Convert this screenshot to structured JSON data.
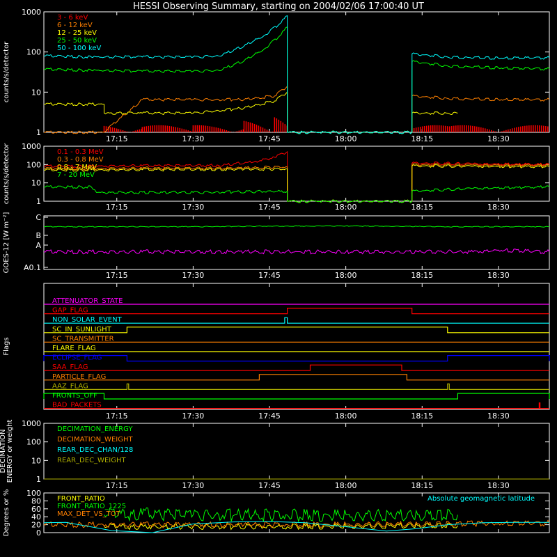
{
  "title": "HESSI Observing Summary, starting on 2004/02/06 17:00:40 UT",
  "time_ticks": [
    "17:15",
    "17:30",
    "17:45",
    "18:00",
    "18:15",
    "18:30"
  ],
  "colors": {
    "red": "#ff0000",
    "orange": "#ff8000",
    "yellow": "#ffff00",
    "green": "#00ff00",
    "cyan": "#00ffff",
    "magenta": "#ff00ff",
    "blue": "#0000ff",
    "olive": "#b0b000",
    "white": "#ffffff"
  },
  "chart_data": [
    {
      "type": "line",
      "title": "HESSI Observing Summary, starting on 2004/02/06 17:00:40 UT",
      "ylabel": "counts/s/detector",
      "yscale": "log",
      "ylim": [
        1,
        1000
      ],
      "yticks": [
        "1",
        "10",
        "100",
        "1000"
      ],
      "xlim": [
        "17:00:40",
        "18:40"
      ],
      "legend_position": "top-left",
      "series": [
        {
          "name": "3 - 6 keV",
          "color": "red",
          "style": "bars",
          "x": [
            "17:12:30",
            "17:20",
            "17:30",
            "17:40",
            "17:46",
            "17:48:30",
            "17:48:31",
            "18:13",
            "18:20",
            "18:40"
          ],
          "values": [
            1.5,
            1.5,
            1.5,
            2,
            3,
            3.5,
            1,
            1.5,
            1.5,
            1.5
          ]
        },
        {
          "name": "6 - 12 keV",
          "color": "orange",
          "x": [
            "17:00:40",
            "17:12:30",
            "17:20",
            "17:30",
            "17:40",
            "17:46",
            "17:48:30",
            "17:48:31",
            "18:13",
            "18:13:01",
            "18:20",
            "18:30",
            "18:40"
          ],
          "values": [
            1,
            1,
            6.5,
            6.5,
            6.5,
            8,
            14,
            1,
            1,
            8,
            7,
            6.5,
            6.5
          ]
        },
        {
          "name": "12 - 25 keV",
          "color": "yellow",
          "x": [
            "17:00:40",
            "17:12:30",
            "17:12:31",
            "17:20",
            "17:30",
            "17:40",
            "17:46",
            "17:48:30",
            "17:48:31",
            "18:13",
            "18:13:01",
            "18:20",
            "18:22"
          ],
          "values": [
            5,
            5,
            3,
            3,
            3,
            4,
            6,
            10,
            1,
            1,
            3,
            3,
            3
          ]
        },
        {
          "name": "25 - 50 keV",
          "color": "green",
          "x": [
            "17:00:40",
            "17:10",
            "17:20",
            "17:30",
            "17:35",
            "17:40",
            "17:44",
            "17:47",
            "17:48:30",
            "17:48:31",
            "18:13",
            "18:13:01",
            "18:20",
            "18:30",
            "18:40"
          ],
          "values": [
            37,
            35,
            33,
            33,
            35,
            60,
            120,
            250,
            420,
            1,
            1,
            58,
            45,
            40,
            38
          ]
        },
        {
          "name": "50 - 100 keV",
          "color": "cyan",
          "x": [
            "17:00:40",
            "17:10",
            "17:20",
            "17:30",
            "17:35",
            "17:40",
            "17:44",
            "17:47",
            "17:48:30",
            "17:48:31",
            "18:13",
            "18:13:01",
            "18:20",
            "18:30",
            "18:40"
          ],
          "values": [
            80,
            75,
            75,
            75,
            80,
            140,
            260,
            500,
            800,
            1,
            1,
            90,
            75,
            70,
            72
          ]
        }
      ]
    },
    {
      "type": "line",
      "ylabel": "counts/s/detector",
      "yscale": "log",
      "ylim": [
        1,
        1000
      ],
      "yticks": [
        "1",
        "10",
        "100",
        "1000"
      ],
      "legend_position": "top-left",
      "series": [
        {
          "name": "0.1 - 0.3 MeV",
          "color": "red",
          "x": [
            "17:00:40",
            "17:20",
            "17:35",
            "17:42",
            "17:46",
            "17:48:30",
            "17:48:31",
            "18:13",
            "18:13:01",
            "18:25",
            "18:40"
          ],
          "values": [
            80,
            85,
            90,
            140,
            250,
            500,
            1,
            1,
            120,
            110,
            100
          ]
        },
        {
          "name": "0.3 - 0.8 MeV",
          "color": "orange",
          "x": [
            "17:00:40",
            "17:20",
            "17:40",
            "17:48:30",
            "17:48:31",
            "18:13",
            "18:13:01",
            "18:25",
            "18:40"
          ],
          "values": [
            60,
            62,
            65,
            75,
            1,
            1,
            100,
            95,
            90
          ]
        },
        {
          "name": "0.8 - 7 MeV",
          "color": "yellow",
          "x": [
            "17:00:40",
            "17:20",
            "17:40",
            "17:48:30",
            "17:48:31",
            "18:13",
            "18:13:01",
            "18:25",
            "18:40"
          ],
          "values": [
            50,
            52,
            55,
            58,
            1,
            1,
            85,
            80,
            75
          ]
        },
        {
          "name": "7 - 20 MeV",
          "color": "green",
          "x": [
            "17:00:40",
            "17:10",
            "17:11",
            "17:30",
            "17:48:30",
            "17:48:31",
            "18:13",
            "18:13:01",
            "18:25",
            "18:40"
          ],
          "values": [
            6,
            6,
            3,
            3,
            3.5,
            1,
            1,
            3.5,
            5,
            6
          ]
        }
      ]
    },
    {
      "type": "line",
      "ylabel": "GOES-12 [W m⁻²]",
      "yscale": "log",
      "yticks": [
        "A0.1",
        "A",
        "B",
        "C"
      ],
      "series": [
        {
          "color": "green",
          "x": [
            "17:00:40",
            "17:30",
            "17:45",
            "18:00",
            "18:20",
            "18:40"
          ],
          "values": [
            "B3",
            "B3",
            "B3.2",
            "B3.3",
            "B3",
            "B3"
          ]
        },
        {
          "color": "magenta",
          "x": [
            "17:00:40",
            "17:20",
            "17:40",
            "18:00",
            "18:25",
            "18:30",
            "18:40"
          ],
          "values": [
            "A0.2",
            "A0.2",
            "A0.2",
            "A0.2",
            "A0.2",
            "A0.3",
            "A0.2"
          ]
        }
      ]
    },
    {
      "type": "line",
      "ylabel": "Flags",
      "series": [
        {
          "name": "ATTENUATOR_STATE",
          "color": "magenta",
          "high": []
        },
        {
          "name": "GAP_FLAG",
          "color": "red",
          "high": [
            [
              "17:48:30",
              "18:13"
            ]
          ]
        },
        {
          "name": "NON_SOLAR_EVENT",
          "color": "cyan",
          "high": [
            [
              "17:48",
              "17:48:30"
            ]
          ]
        },
        {
          "name": "SC_IN_SUNLIGHT",
          "color": "yellow",
          "high": [
            [
              "17:17",
              "18:20"
            ]
          ]
        },
        {
          "name": "SC_TRANSMITTER",
          "color": "orange",
          "high": []
        },
        {
          "name": "FLARE_FLAG",
          "color": "yellow",
          "high": []
        },
        {
          "name": "ECLIPSE_FLAG",
          "color": "blue",
          "high": [
            [
              "17:00:40",
              "17:17"
            ],
            [
              "18:20",
              "18:40"
            ]
          ]
        },
        {
          "name": "SAA_FLAG",
          "color": "red",
          "high": [
            [
              "17:53",
              "18:11"
            ]
          ]
        },
        {
          "name": "PARTICLE_FLAG",
          "color": "orange",
          "high": [
            [
              "17:43",
              "18:12"
            ]
          ]
        },
        {
          "name": "AAZ_FLAG",
          "color": "olive",
          "high": [
            [
              "17:17",
              "17:17:20"
            ],
            [
              "18:20",
              "18:20:20"
            ]
          ]
        },
        {
          "name": "FRONTS_OFF",
          "color": "green",
          "high": [
            [
              "17:00:40",
              "17:12:30"
            ],
            [
              "18:22",
              "18:40"
            ]
          ]
        },
        {
          "name": "BAD_PACKETS",
          "color": "red",
          "high": [
            [
              "18:38",
              "18:38:10"
            ]
          ]
        }
      ]
    },
    {
      "type": "line",
      "ylabel": "DECIMATION ENERGY or weight",
      "yscale": "log",
      "ylim": [
        1,
        1000
      ],
      "yticks": [
        "1",
        "10",
        "100",
        "1000"
      ],
      "legend_position": "top-left",
      "series": [
        {
          "name": "DECIMATION_ENERGY",
          "color": "green"
        },
        {
          "name": "DECIMATION_WEIGHT",
          "color": "orange"
        },
        {
          "name": "REAR_DEC_CHAN/128",
          "color": "cyan"
        },
        {
          "name": "REAR_DEC_WEIGHT",
          "color": "olive",
          "x": [
            "17:00:40",
            "18:40"
          ],
          "values": [
            1,
            1
          ]
        }
      ]
    },
    {
      "type": "line",
      "ylabel": "Degrees or %",
      "ylim": [
        0,
        100
      ],
      "yticks": [
        "0",
        "20",
        "40",
        "60",
        "80",
        "100"
      ],
      "legend_position": "top-left",
      "annotations": [
        "Absolute geomagnetic latitude"
      ],
      "series": [
        {
          "name": "FRONT_RATIO",
          "color": "yellow",
          "x": [
            "17:12:30",
            "17:30",
            "17:48:30",
            "18:13",
            "18:22"
          ],
          "values": [
            15,
            15,
            15,
            18,
            18
          ]
        },
        {
          "name": "FRONT_RATIO_1225",
          "color": "green",
          "x": [
            "17:12:30",
            "17:20",
            "17:30",
            "17:40",
            "17:48:30",
            "18:13",
            "18:22"
          ],
          "values": [
            45,
            47,
            45,
            44,
            44,
            45,
            45
          ]
        },
        {
          "name": "MAX_DET_VS_TOT",
          "color": "orange",
          "x": [
            "17:00:40",
            "17:20",
            "17:40",
            "17:48:30",
            "18:13",
            "18:30",
            "18:40"
          ],
          "values": [
            20,
            20,
            20,
            20,
            22,
            23,
            24
          ]
        },
        {
          "name": "Absolute geomagnetic latitude",
          "color": "cyan",
          "x": [
            "17:00:40",
            "17:05",
            "17:14",
            "17:22",
            "17:30",
            "17:38",
            "17:45",
            "17:52",
            "18:00",
            "18:08",
            "18:14",
            "18:20",
            "18:27",
            "18:33",
            "18:40"
          ],
          "values": [
            25,
            26,
            5,
            0,
            22,
            27,
            28,
            25,
            15,
            4,
            10,
            20,
            25,
            26,
            26
          ]
        }
      ]
    }
  ]
}
